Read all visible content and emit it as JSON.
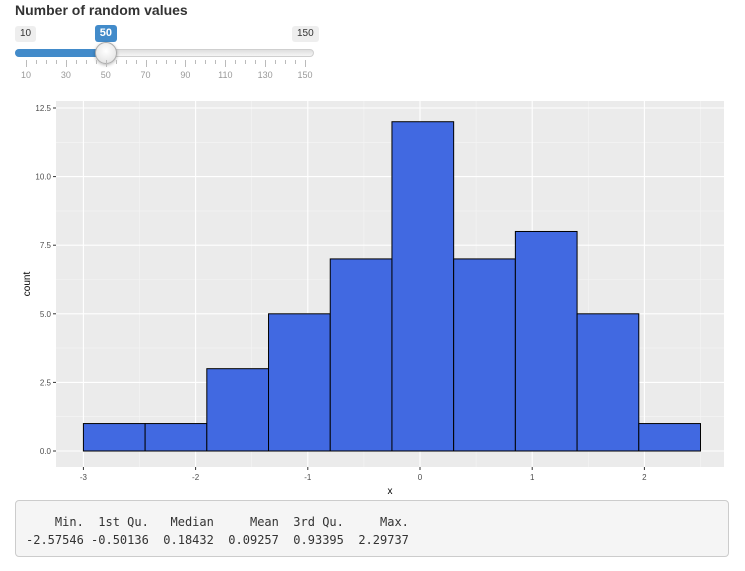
{
  "slider": {
    "label": "Number of random values",
    "min_label": "10",
    "max_label": "150",
    "min": 10,
    "max": 150,
    "value": 50,
    "value_label": "50",
    "tick_labels": [
      "10",
      "30",
      "50",
      "70",
      "90",
      "110",
      "130",
      "150"
    ],
    "accent_color": "#428bca"
  },
  "chart_data": {
    "type": "bar",
    "xlabel": "x",
    "ylabel": "count",
    "bins": [
      {
        "x0": -3.0,
        "x1": -2.45,
        "count": 1
      },
      {
        "x0": -2.45,
        "x1": -1.9,
        "count": 1
      },
      {
        "x0": -1.9,
        "x1": -1.35,
        "count": 3
      },
      {
        "x0": -1.35,
        "x1": -0.8,
        "count": 5
      },
      {
        "x0": -0.8,
        "x1": -0.25,
        "count": 7
      },
      {
        "x0": -0.25,
        "x1": 0.3,
        "count": 12
      },
      {
        "x0": 0.3,
        "x1": 0.85,
        "count": 7
      },
      {
        "x0": 0.85,
        "x1": 1.4,
        "count": 8
      },
      {
        "x0": 1.4,
        "x1": 1.95,
        "count": 5
      },
      {
        "x0": 1.95,
        "x1": 2.5,
        "count": 1
      }
    ],
    "xlim": [
      -3.25,
      2.75
    ],
    "ylim": [
      -0.6,
      12.5
    ],
    "xticks": [
      -3,
      -2,
      -1,
      0,
      1,
      2
    ],
    "xtick_labels": [
      "-3",
      "-2",
      "-1",
      "0",
      "1",
      "2"
    ],
    "yticks": [
      0,
      2.5,
      5,
      7.5,
      10,
      12.5
    ],
    "ytick_labels": [
      "0.0",
      "2.5",
      "5.0",
      "7.5",
      "10.0",
      "12.5"
    ],
    "bar_color": "#4169e1",
    "panel_color": "#ebebeb",
    "grid": true
  },
  "summary": {
    "headers": [
      "Min.",
      "1st Qu.",
      "Median",
      "Mean",
      "3rd Qu.",
      "Max."
    ],
    "header_line": "    Min.  1st Qu.   Median     Mean  3rd Qu.     Max. ",
    "value_line": "-2.57546 -0.50136  0.18432  0.09257  0.93395  2.29737 "
  }
}
